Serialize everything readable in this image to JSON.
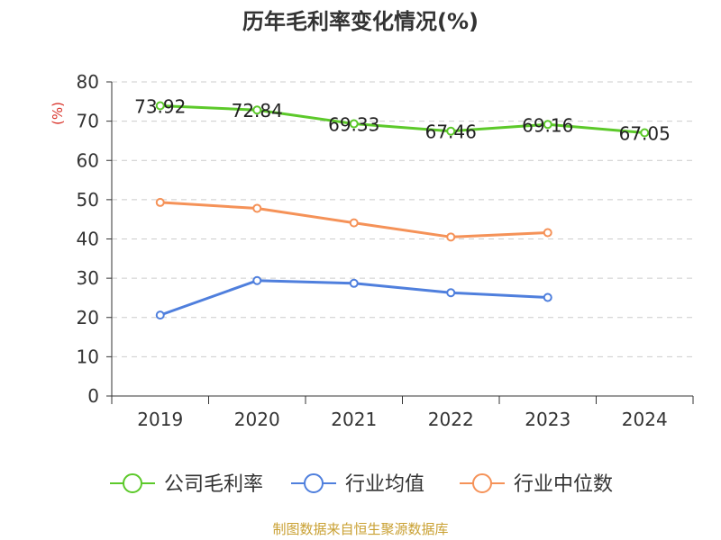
{
  "chart_data": {
    "type": "line",
    "title": "历年毛利率变化情况(%)",
    "ylabel": "(%)",
    "xlabel": "",
    "ylim": [
      0,
      80
    ],
    "yticks": [
      0,
      10,
      20,
      30,
      40,
      50,
      60,
      70,
      80
    ],
    "categories": [
      "2019",
      "2020",
      "2021",
      "2022",
      "2023",
      "2024"
    ],
    "grid": true,
    "legend_position": "bottom",
    "series": [
      {
        "name": "公司毛利率",
        "color": "#5cc92a",
        "values": [
          73.92,
          72.84,
          69.33,
          67.46,
          69.16,
          67.05
        ],
        "show_labels": true,
        "labels": [
          "73.92",
          "72.84",
          "69.33",
          "67.46",
          "69.16",
          "67.05"
        ]
      },
      {
        "name": "行业均值",
        "color": "#4f7fdd",
        "values": [
          20.6,
          29.4,
          28.7,
          26.3,
          25.1,
          null
        ],
        "show_labels": false
      },
      {
        "name": "行业中位数",
        "color": "#f59258",
        "values": [
          49.3,
          47.8,
          44.1,
          40.5,
          41.6,
          null
        ],
        "show_labels": false
      }
    ]
  },
  "footer": {
    "source": "制图数据来自恒生聚源数据库"
  }
}
